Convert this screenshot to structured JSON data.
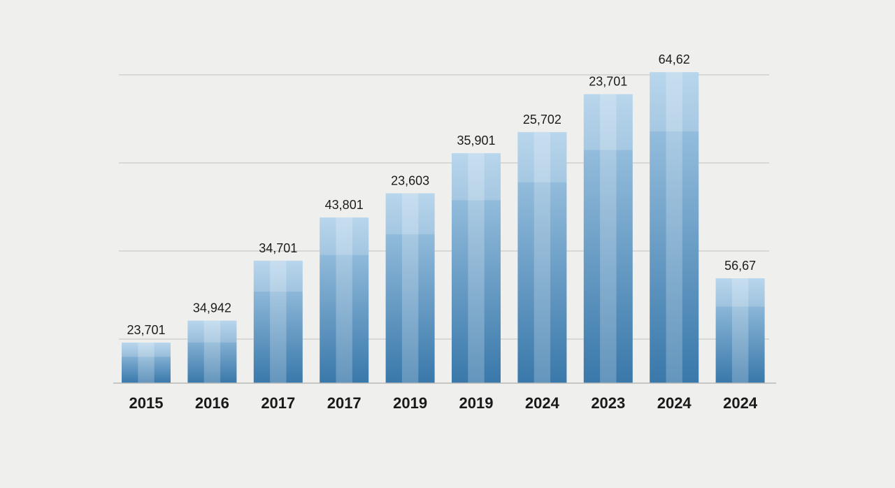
{
  "chart_data": {
    "type": "bar",
    "title": "",
    "xlabel": "",
    "ylabel": "",
    "ylim": [
      0,
      80
    ],
    "grid": true,
    "categories": [
      "2015",
      "2016",
      "2017",
      "2017",
      "2019",
      "2019",
      "2024",
      "2023",
      "2024",
      "2024"
    ],
    "values": [
      9.2,
      14.2,
      27.8,
      37.6,
      43.1,
      52.2,
      57.0,
      65.6,
      70.6,
      23.8
    ],
    "data_labels": [
      "23,701",
      "34,942",
      "34,701",
      "43,801",
      "23,603",
      "35,901",
      "25,702",
      "23,701",
      "64,62",
      "56,67"
    ]
  },
  "colors": {
    "background": "#efefed",
    "bar_top": "#a9cde8",
    "bar_bottom": "#3978aa",
    "stripe": "#ffffff",
    "grid": "#c9c9c9"
  }
}
